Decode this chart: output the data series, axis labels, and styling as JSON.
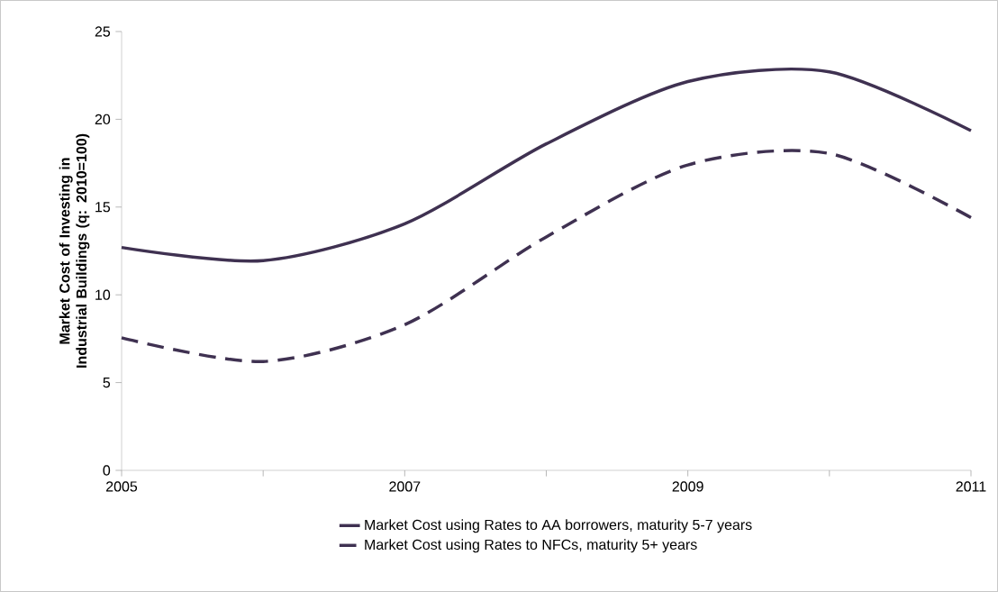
{
  "chart_data": {
    "type": "line",
    "ylabel": "Market Cost of Investing in Industrial Buildings (q: 2010=100)",
    "x": [
      2005,
      2006,
      2007,
      2008,
      2009,
      2010,
      2011
    ],
    "xlim": [
      2005,
      2011
    ],
    "xticks": [
      2005,
      {
        "value": 2006,
        "label": null
      },
      2007,
      {
        "value": 2008,
        "label": null
      },
      2009,
      {
        "value": 2010,
        "label": null
      },
      2011
    ],
    "ylim": [
      0,
      25
    ],
    "yticks": [
      0,
      5,
      10,
      15,
      20,
      25
    ],
    "grid": false,
    "legend": "bottom",
    "marker": "none",
    "series": [
      {
        "name": "Market Cost using Rates to AA borrowers, maturity 5-7 years",
        "color": "#3f3151",
        "line_style": "solid",
        "values": [
          12.7,
          11.95,
          14.05,
          18.6,
          22.15,
          22.7,
          19.35
        ]
      },
      {
        "name": "Market Cost using Rates to NFCs, maturity 5+ years",
        "color": "#3f3151",
        "line_style": "dashed",
        "values": [
          7.55,
          6.2,
          8.3,
          13.3,
          17.4,
          18.05,
          14.4
        ]
      }
    ]
  }
}
